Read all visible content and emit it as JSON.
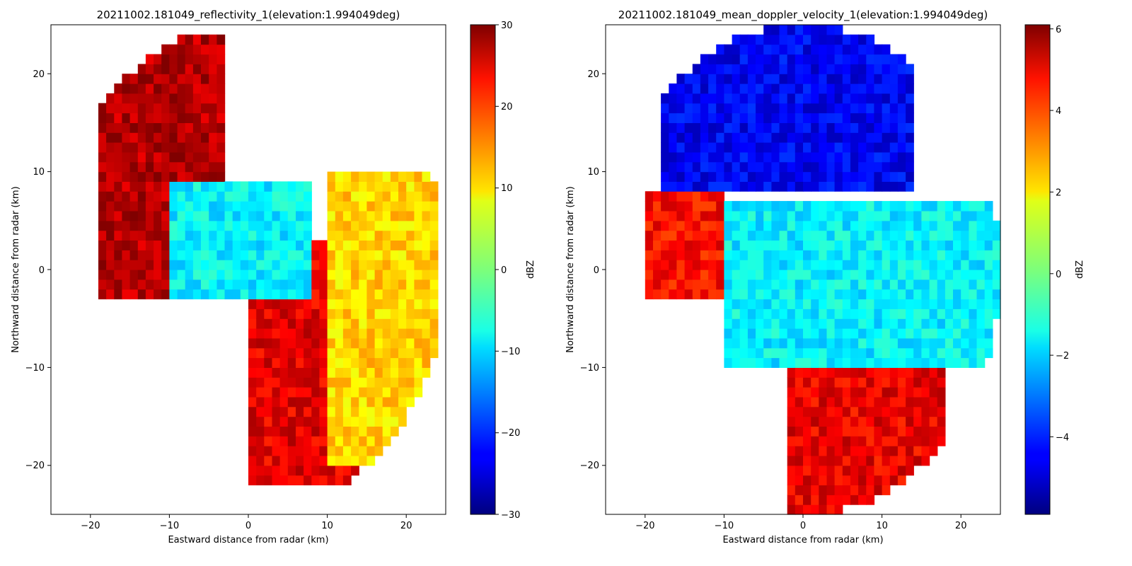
{
  "chart_data": [
    {
      "type": "heatmap",
      "title": "20211002.181049_reflectivity_1(elevation:1.994049deg)",
      "xlabel": "Eastward distance from radar (km)",
      "ylabel": "Northward distance from radar (km)",
      "xlim": [
        -25,
        25
      ],
      "ylim": [
        -25,
        25
      ],
      "x_ticks": [
        -20,
        -10,
        0,
        10,
        20
      ],
      "y_ticks": [
        -20,
        -10,
        0,
        10,
        20
      ],
      "x_tick_labels": [
        "−20",
        "−10",
        "0",
        "10",
        "20"
      ],
      "y_tick_labels": [
        "−20",
        "−10",
        "0",
        "10",
        "20"
      ],
      "colorbar": {
        "label": "dBZ",
        "colormap": "jet",
        "range": [
          -30,
          30
        ],
        "ticks": [
          -30,
          -20,
          -10,
          0,
          10,
          20,
          30
        ],
        "tick_labels": [
          "−30",
          "−20",
          "−10",
          "0",
          "10",
          "20",
          "30"
        ]
      },
      "max_range_km": 25,
      "grid": false,
      "features": [
        {
          "description": "strong echo band",
          "x": [
            -19,
            -3
          ],
          "y": [
            -3,
            24
          ],
          "approx_value": 27
        },
        {
          "description": "strong echo core",
          "x": [
            0,
            24
          ],
          "y": [
            -22,
            3
          ],
          "approx_value": 24
        },
        {
          "description": "weak echo region",
          "x": [
            -10,
            8
          ],
          "y": [
            -3,
            9
          ],
          "approx_value": -8
        },
        {
          "description": "moderate echoes",
          "x": [
            10,
            24
          ],
          "y": [
            -20,
            10
          ],
          "approx_value": 10
        }
      ]
    },
    {
      "type": "heatmap",
      "title": "20211002.181049_mean_doppler_velocity_1(elevation:1.994049deg)",
      "xlabel": "Eastward distance from radar (km)",
      "ylabel": "Northward distance from radar (km)",
      "xlim": [
        -25,
        25
      ],
      "ylim": [
        -25,
        25
      ],
      "x_ticks": [
        -20,
        -10,
        0,
        10,
        20
      ],
      "y_ticks": [
        -20,
        -10,
        0,
        10,
        20
      ],
      "x_tick_labels": [
        "−20",
        "−10",
        "0",
        "10",
        "20"
      ],
      "y_tick_labels": [
        "−20",
        "−10",
        "0",
        "10",
        "20"
      ],
      "colorbar": {
        "label": "dBZ",
        "colormap": "jet",
        "range": [
          -5.9,
          6.1
        ],
        "ticks": [
          -4,
          -2,
          0,
          2,
          4,
          6
        ],
        "tick_labels": [
          "−4",
          "−2",
          "0",
          "2",
          "4",
          "6"
        ]
      },
      "max_range_km": 25,
      "grid": false,
      "features": [
        {
          "description": "inbound (negative) velocities",
          "x": [
            -18,
            14
          ],
          "y": [
            8,
            25
          ],
          "approx_value": -4.5
        },
        {
          "description": "outbound (positive) velocities",
          "x": [
            -20,
            -10
          ],
          "y": [
            -3,
            8
          ],
          "approx_value": 4.5
        },
        {
          "description": "outbound (positive) velocities",
          "x": [
            -2,
            18
          ],
          "y": [
            -25,
            -9
          ],
          "approx_value": 4.8
        },
        {
          "description": "near-zero velocities",
          "x": [
            -10,
            25
          ],
          "y": [
            -10,
            7
          ],
          "approx_value": -1.5
        }
      ]
    }
  ]
}
